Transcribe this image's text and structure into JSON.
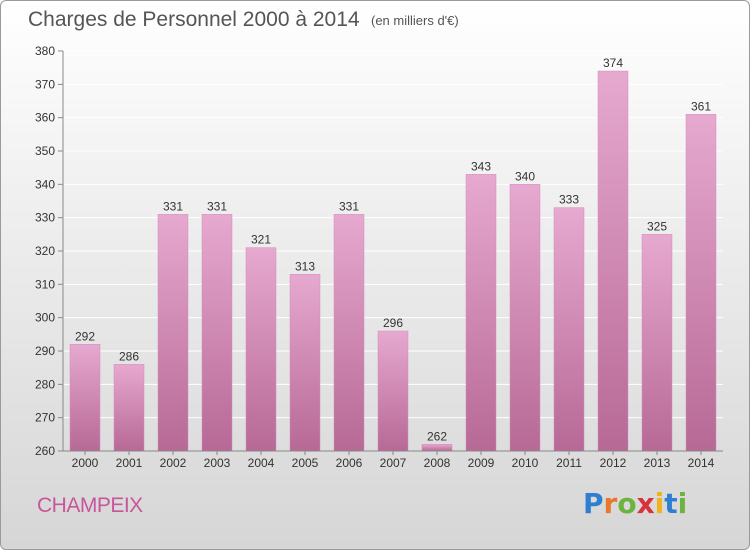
{
  "header": {
    "title": "Charges de Personnel 2000 à 2014",
    "subtitle": "(en milliers d'€)"
  },
  "footer": {
    "commune": "CHAMPEIX",
    "logo_letters": [
      "P",
      "r",
      "o",
      "x",
      "i",
      "t",
      "i"
    ],
    "logo_colors": [
      "#2f7fd0",
      "#e8782a",
      "#6cb33f",
      "#d8323a",
      "#f2b21c",
      "#2f7fd0",
      "#6cb33f"
    ]
  },
  "colors": {
    "bar_top": "#e6a9cf",
    "bar_bottom": "#b76996",
    "axis": "#888888",
    "grid": "#ffffff",
    "label": "#333333"
  },
  "chart_data": {
    "type": "bar",
    "title": "Charges de Personnel 2000 à 2014",
    "subtitle": "(en milliers d'€)",
    "categories": [
      "2000",
      "2001",
      "2002",
      "2003",
      "2004",
      "2005",
      "2006",
      "2007",
      "2008",
      "2009",
      "2010",
      "2011",
      "2012",
      "2013",
      "2014"
    ],
    "values": [
      292,
      286,
      331,
      331,
      321,
      313,
      331,
      296,
      262,
      343,
      340,
      333,
      374,
      325,
      361
    ],
    "ylim": [
      260,
      380
    ],
    "yticks": [
      260,
      270,
      280,
      290,
      300,
      310,
      320,
      330,
      340,
      350,
      360,
      370,
      380
    ],
    "grid": true,
    "legend": "none"
  }
}
